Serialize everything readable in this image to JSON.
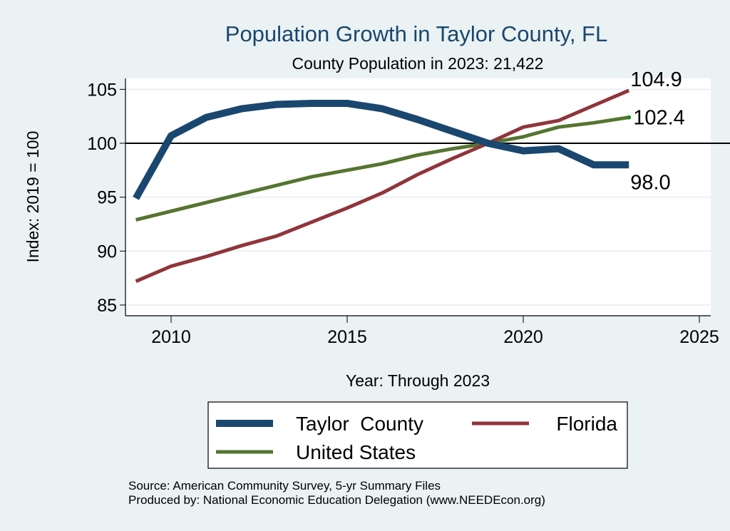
{
  "chart_data": {
    "type": "line",
    "title": "Population Growth in Taylor County, FL",
    "subtitle": "County Population in 2023: 21,422",
    "xlabel": "Year: Through 2023",
    "ylabel": "Index: 2019 = 100",
    "xlim": [
      2008.7,
      2025.3
    ],
    "ylim": [
      84,
      106
    ],
    "x_ticks": [
      2010,
      2015,
      2020,
      2025
    ],
    "y_ticks": [
      85,
      90,
      95,
      100,
      105
    ],
    "grid": true,
    "reference_line": 100,
    "legend_position": "bottom",
    "x": [
      2009,
      2010,
      2011,
      2012,
      2013,
      2014,
      2015,
      2016,
      2017,
      2018,
      2019,
      2020,
      2021,
      2022,
      2023
    ],
    "series": [
      {
        "name": "Taylor  County",
        "color": "#1a476f",
        "width": "thick",
        "end_label": "98.0",
        "values": [
          94.9,
          100.7,
          102.4,
          103.2,
          103.6,
          103.7,
          103.7,
          103.2,
          102.2,
          101.1,
          100.0,
          99.3,
          99.5,
          98.0,
          98.0
        ]
      },
      {
        "name": "Florida",
        "color": "#90353b",
        "width": "medium",
        "end_label": "104.9",
        "values": [
          87.2,
          88.6,
          89.5,
          90.5,
          91.4,
          92.7,
          94.0,
          95.4,
          97.1,
          98.6,
          100.0,
          101.5,
          102.1,
          103.5,
          104.9
        ]
      },
      {
        "name": "United States",
        "color": "#55752f",
        "width": "medium",
        "end_label": "102.4",
        "values": [
          92.9,
          93.7,
          94.5,
          95.3,
          96.1,
          96.9,
          97.5,
          98.1,
          98.9,
          99.5,
          100.0,
          100.6,
          101.5,
          101.9,
          102.4
        ]
      }
    ],
    "colors": {
      "background": "#eaf2f3",
      "plot_background": "#ffffff",
      "grid": "#eaf2f3",
      "title": "#1a476f"
    }
  },
  "notes": {
    "source": "Source: American Community Survey, 5-yr Summary Files",
    "produced_by": "Produced by: National Economic Education Delegation (www.NEEDEcon.org)"
  }
}
